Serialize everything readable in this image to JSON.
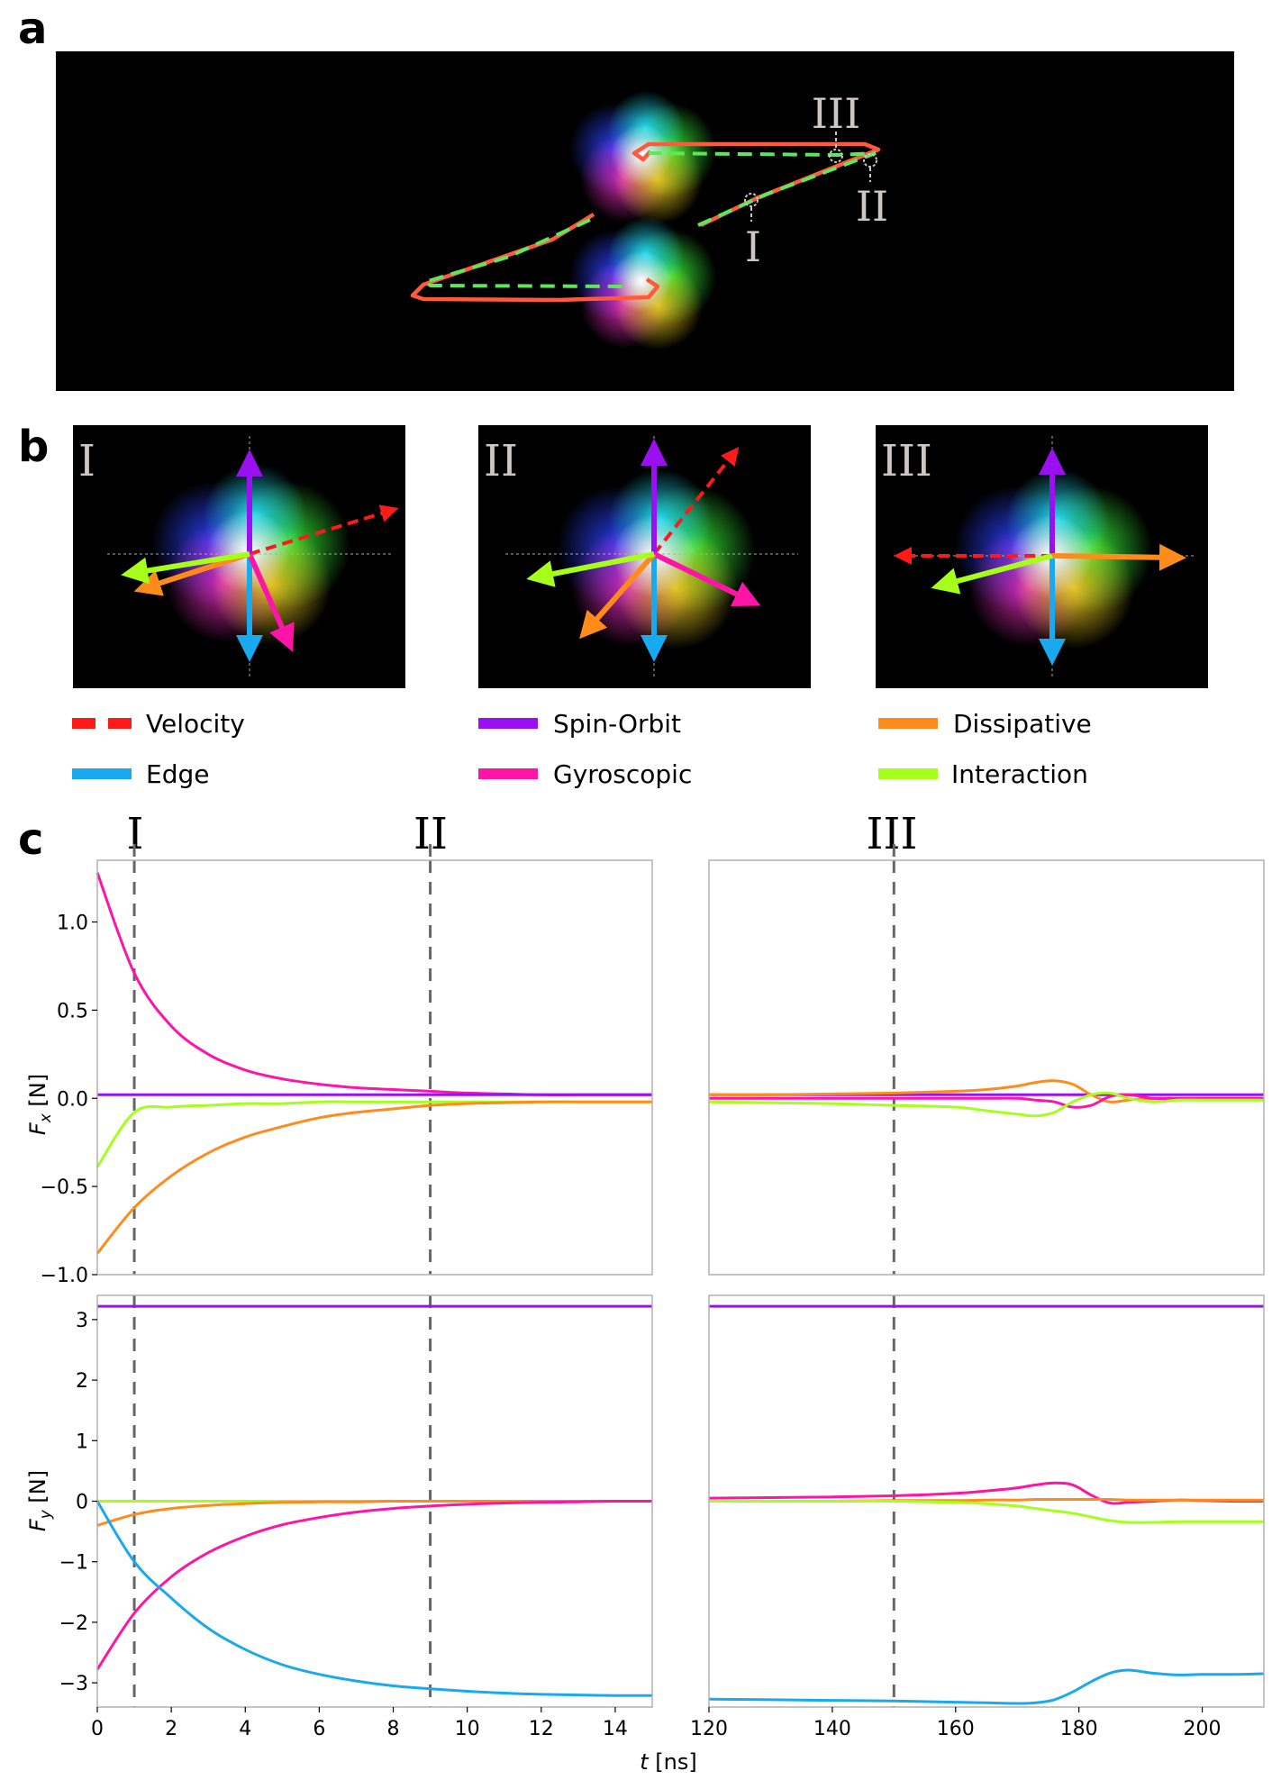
{
  "panel_labels": {
    "a": "a",
    "b": "b",
    "c": "c"
  },
  "panel_a": {
    "markers": [
      "III",
      "II",
      "I"
    ]
  },
  "panel_b": {
    "insets": [
      "I",
      "II",
      "III"
    ]
  },
  "legend": [
    {
      "label": "Velocity",
      "color": "#ff1a1a",
      "style": "dashed"
    },
    {
      "label": "Spin-Orbit",
      "color": "#9b10f0",
      "style": "solid"
    },
    {
      "label": "Dissipative",
      "color": "#ff8c1a",
      "style": "solid"
    },
    {
      "label": "Edge",
      "color": "#19a9ef",
      "style": "solid"
    },
    {
      "label": "Gyroscopic",
      "color": "#ff14a8",
      "style": "solid"
    },
    {
      "label": "Interaction",
      "color": "#a5ff1a",
      "style": "solid"
    }
  ],
  "panel_c_markers": [
    {
      "label": "I",
      "t": 1
    },
    {
      "label": "II",
      "t": 9
    },
    {
      "label": "III",
      "t": 150
    }
  ],
  "chart_data": [
    {
      "id": "fx_early",
      "type": "line",
      "ylabel": "F_x [N]",
      "xlim": [
        0,
        15
      ],
      "ylim": [
        -1.0,
        1.35
      ],
      "yticks": [
        -1.0,
        -0.5,
        0.0,
        0.5,
        1.0
      ],
      "ytick_labels": [
        "−1.0",
        "−0.5",
        "0.0",
        "0.5",
        "1.0"
      ],
      "x": [
        0,
        1,
        2,
        3,
        4,
        5,
        6,
        7,
        8,
        9,
        10,
        11,
        12,
        13,
        14,
        15
      ],
      "series": [
        {
          "name": "Gyroscopic",
          "color": "#ff14a8",
          "values": [
            1.28,
            0.71,
            0.41,
            0.25,
            0.16,
            0.11,
            0.08,
            0.06,
            0.05,
            0.04,
            0.03,
            0.025,
            0.02,
            0.02,
            0.02,
            0.02
          ]
        },
        {
          "name": "Spin-Orbit",
          "color": "#9b10f0",
          "values": [
            0.02,
            0.02,
            0.02,
            0.02,
            0.02,
            0.02,
            0.02,
            0.02,
            0.02,
            0.02,
            0.02,
            0.02,
            0.02,
            0.02,
            0.02,
            0.02
          ]
        },
        {
          "name": "Interaction",
          "color": "#a5ff1a",
          "values": [
            -0.39,
            -0.08,
            -0.05,
            -0.04,
            -0.03,
            -0.03,
            -0.02,
            -0.02,
            -0.02,
            -0.02,
            -0.02,
            -0.02,
            -0.02,
            -0.02,
            -0.02,
            -0.02
          ]
        },
        {
          "name": "Dissipative",
          "color": "#ff8c1a",
          "values": [
            -0.88,
            -0.62,
            -0.44,
            -0.31,
            -0.22,
            -0.16,
            -0.11,
            -0.08,
            -0.06,
            -0.04,
            -0.03,
            -0.025,
            -0.02,
            -0.02,
            -0.02,
            -0.02
          ]
        }
      ]
    },
    {
      "id": "fx_late",
      "type": "line",
      "ylabel": "",
      "xlim": [
        120,
        210
      ],
      "ylim": [
        -1.0,
        1.35
      ],
      "x": [
        120,
        130,
        140,
        150,
        160,
        165,
        170,
        173,
        176,
        179,
        182,
        185,
        188,
        192,
        196,
        200,
        205,
        210
      ],
      "series": [
        {
          "name": "Spin-Orbit",
          "color": "#9b10f0",
          "values": [
            0.02,
            0.02,
            0.02,
            0.02,
            0.02,
            0.02,
            0.02,
            0.02,
            0.02,
            0.02,
            0.02,
            0.02,
            0.02,
            0.02,
            0.02,
            0.02,
            0.02,
            0.02
          ]
        },
        {
          "name": "Dissipative",
          "color": "#ff8c1a",
          "values": [
            0.02,
            0.02,
            0.025,
            0.03,
            0.04,
            0.05,
            0.07,
            0.09,
            0.1,
            0.08,
            0.02,
            -0.02,
            -0.01,
            0.0,
            0.0,
            0.0,
            0.0,
            0.0
          ]
        },
        {
          "name": "Gyroscopic",
          "color": "#ff14a8",
          "values": [
            0.0,
            0.0,
            0.0,
            0.0,
            0.0,
            0.0,
            0.0,
            -0.01,
            -0.02,
            -0.05,
            -0.04,
            0.01,
            0.02,
            0.0,
            0.0,
            0.0,
            0.0,
            0.0
          ]
        },
        {
          "name": "Interaction",
          "color": "#a5ff1a",
          "values": [
            -0.02,
            -0.025,
            -0.03,
            -0.04,
            -0.05,
            -0.07,
            -0.09,
            -0.1,
            -0.08,
            -0.02,
            0.02,
            0.03,
            0.0,
            -0.02,
            -0.01,
            -0.01,
            -0.01,
            -0.01
          ]
        }
      ]
    },
    {
      "id": "fy_early",
      "type": "line",
      "ylabel": "F_y [N]",
      "xlim": [
        0,
        15
      ],
      "ylim": [
        -3.4,
        3.4
      ],
      "yticks": [
        -3,
        -2,
        -1,
        0,
        1,
        2,
        3
      ],
      "ytick_labels": [
        "−3",
        "−2",
        "−1",
        "0",
        "1",
        "2",
        "3"
      ],
      "xticks": [
        0,
        2,
        4,
        6,
        8,
        10,
        12,
        14
      ],
      "xtick_labels": [
        "0",
        "2",
        "4",
        "6",
        "8",
        "10",
        "12",
        "14"
      ],
      "x": [
        0,
        1,
        2,
        3,
        4,
        5,
        6,
        7,
        8,
        9,
        10,
        11,
        12,
        13,
        14,
        15
      ],
      "series": [
        {
          "name": "Spin-Orbit",
          "color": "#9b10f0",
          "values": [
            3.22,
            3.22,
            3.22,
            3.22,
            3.22,
            3.22,
            3.22,
            3.22,
            3.22,
            3.22,
            3.22,
            3.22,
            3.22,
            3.22,
            3.22,
            3.22
          ]
        },
        {
          "name": "Interaction",
          "color": "#a5ff1a",
          "values": [
            0.0,
            0.0,
            0.0,
            0.0,
            0.0,
            0.0,
            0.0,
            0.0,
            0.0,
            0.0,
            0.0,
            0.0,
            0.0,
            0.0,
            0.0,
            0.0
          ]
        },
        {
          "name": "Dissipative",
          "color": "#ff8c1a",
          "values": [
            -0.4,
            -0.22,
            -0.12,
            -0.07,
            -0.04,
            -0.02,
            -0.01,
            -0.01,
            0.0,
            0.0,
            0.0,
            0.0,
            0.0,
            0.0,
            0.0,
            0.0
          ]
        },
        {
          "name": "Gyroscopic",
          "color": "#ff14a8",
          "values": [
            -2.78,
            -1.85,
            -1.25,
            -0.85,
            -0.58,
            -0.39,
            -0.27,
            -0.18,
            -0.12,
            -0.08,
            -0.05,
            -0.03,
            -0.02,
            -0.01,
            0.0,
            0.0
          ]
        },
        {
          "name": "Edge",
          "color": "#19a9ef",
          "values": [
            0.0,
            -1.0,
            -1.6,
            -2.1,
            -2.45,
            -2.7,
            -2.86,
            -2.97,
            -3.05,
            -3.1,
            -3.14,
            -3.17,
            -3.19,
            -3.2,
            -3.21,
            -3.21
          ]
        }
      ]
    },
    {
      "id": "fy_late",
      "type": "line",
      "ylabel": "",
      "xlim": [
        120,
        210
      ],
      "ylim": [
        -3.4,
        3.4
      ],
      "xticks": [
        120,
        140,
        160,
        180,
        200
      ],
      "xtick_labels": [
        "120",
        "140",
        "160",
        "180",
        "200"
      ],
      "x": [
        120,
        130,
        140,
        150,
        160,
        165,
        170,
        173,
        176,
        179,
        182,
        185,
        188,
        192,
        196,
        200,
        205,
        210
      ],
      "series": [
        {
          "name": "Spin-Orbit",
          "color": "#9b10f0",
          "values": [
            3.22,
            3.22,
            3.22,
            3.22,
            3.22,
            3.22,
            3.22,
            3.22,
            3.22,
            3.22,
            3.22,
            3.22,
            3.22,
            3.22,
            3.22,
            3.22,
            3.22,
            3.22
          ]
        },
        {
          "name": "Gyroscopic",
          "color": "#ff14a8",
          "values": [
            0.05,
            0.06,
            0.07,
            0.09,
            0.13,
            0.17,
            0.22,
            0.27,
            0.3,
            0.27,
            0.1,
            -0.03,
            -0.02,
            0.0,
            0.02,
            0.01,
            0.0,
            0.0
          ]
        },
        {
          "name": "Dissipative",
          "color": "#ff8c1a",
          "values": [
            0.0,
            0.0,
            0.0,
            0.01,
            0.01,
            0.02,
            0.02,
            0.03,
            0.03,
            0.03,
            0.03,
            0.03,
            0.02,
            0.02,
            0.02,
            0.02,
            0.02,
            0.02
          ]
        },
        {
          "name": "Interaction",
          "color": "#a5ff1a",
          "values": [
            0.0,
            0.0,
            0.0,
            0.0,
            -0.02,
            -0.04,
            -0.08,
            -0.12,
            -0.16,
            -0.2,
            -0.26,
            -0.32,
            -0.35,
            -0.35,
            -0.34,
            -0.34,
            -0.34,
            -0.34
          ]
        },
        {
          "name": "Edge",
          "color": "#19a9ef",
          "values": [
            -3.27,
            -3.28,
            -3.29,
            -3.3,
            -3.32,
            -3.33,
            -3.34,
            -3.33,
            -3.28,
            -3.15,
            -2.98,
            -2.84,
            -2.79,
            -2.84,
            -2.87,
            -2.86,
            -2.86,
            -2.85
          ]
        }
      ]
    }
  ],
  "xlabel": "t [ns]"
}
